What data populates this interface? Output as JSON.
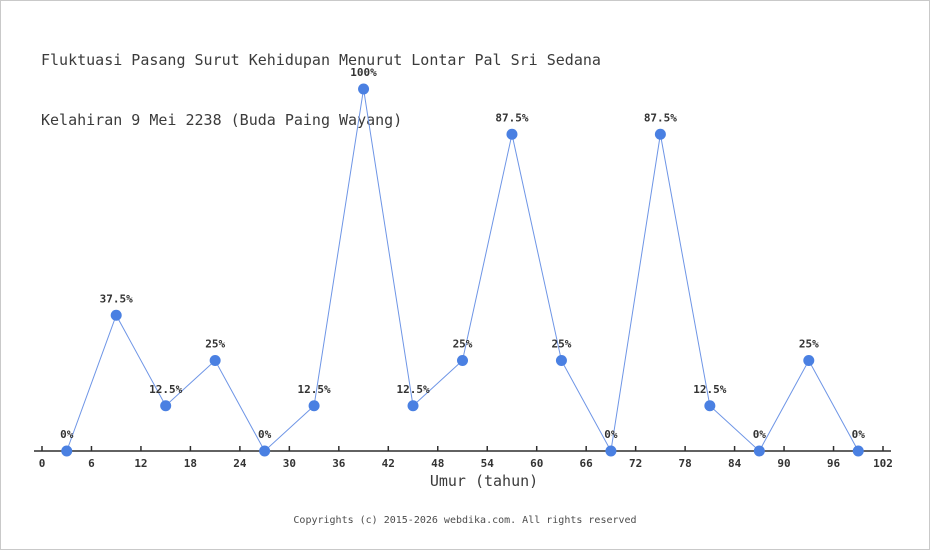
{
  "window": {
    "background": "#ffffff",
    "border_color": "#c9c9c9"
  },
  "chart_data": {
    "type": "line",
    "title": "Fluktuasi Pasang Surut Kehidupan Menurut Lontar Pal Sri Sedana Kelahiran 9 Mei 2238 (Buda Paing Wayang)",
    "title_lines": [
      "Fluktuasi Pasang Surut Kehidupan Menurut Lontar Pal Sri Sedana",
      "Kelahiran 9 Mei 2238 (Buda Paing Wayang)"
    ],
    "x": [
      3,
      9,
      15,
      21,
      27,
      33,
      39,
      45,
      51,
      57,
      63,
      69,
      75,
      81,
      87,
      93,
      99
    ],
    "values": [
      0,
      37.5,
      12.5,
      25,
      0,
      12.5,
      100,
      12.5,
      25,
      87.5,
      25,
      0,
      87.5,
      12.5,
      0,
      25,
      0
    ],
    "point_labels": [
      "0%",
      "37.5%",
      "12.5%",
      "25%",
      "0%",
      "12.5%",
      "100%",
      "12.5%",
      "25%",
      "87.5%",
      "25%",
      "0%",
      "87.5%",
      "12.5%",
      "0%",
      "25%",
      "0%"
    ],
    "xticks": [
      0,
      6,
      12,
      18,
      24,
      30,
      36,
      42,
      48,
      54,
      60,
      66,
      72,
      78,
      84,
      90,
      96,
      102
    ],
    "xlabel": "Umur (tahun)",
    "ylabel": "",
    "xlim": [
      0,
      102
    ],
    "ylim": [
      0,
      100
    ],
    "grid": false,
    "legend": false,
    "line_color": "#6e95e6",
    "marker_color": "#4a80e2",
    "axis_color": "#2e2e2e",
    "label_color": "#333333"
  },
  "footer": {
    "text": "Copyrights (c) 2015-2026 webdika.com. All rights reserved"
  }
}
